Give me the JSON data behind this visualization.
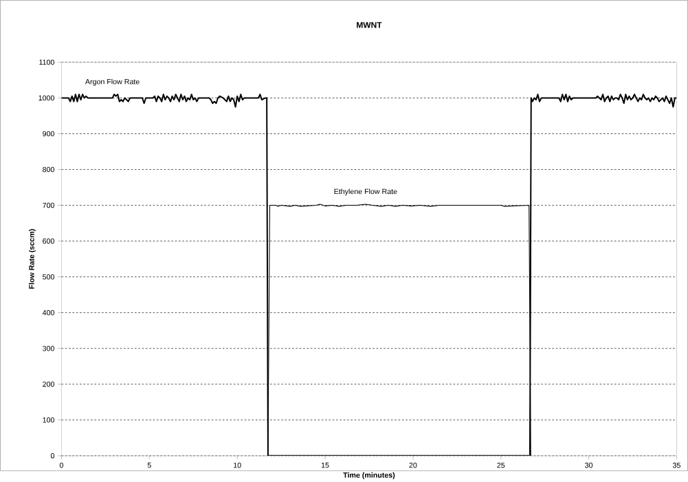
{
  "chart_data": {
    "type": "line",
    "title": "MWNT",
    "xlabel": "Time (minutes)",
    "ylabel": "Flow Rate (sccm)",
    "xlim": [
      0,
      35
    ],
    "ylim": [
      0,
      1100
    ],
    "xticks": [
      0,
      5,
      10,
      15,
      20,
      25,
      30,
      35
    ],
    "yticks": [
      0,
      100,
      200,
      300,
      400,
      500,
      600,
      700,
      800,
      900,
      1000,
      1100
    ],
    "grid": "y",
    "marker": "none",
    "line_style": "solid",
    "series": [
      {
        "name": "Argon Flow Rate",
        "color": "#000000",
        "x": [
          0,
          0.4,
          0.5,
          0.6,
          0.7,
          0.8,
          0.9,
          1.0,
          1.1,
          1.2,
          1.3,
          1.4,
          1.5,
          1.6,
          1.7,
          2.9,
          3.0,
          3.1,
          3.2,
          3.3,
          3.4,
          3.5,
          3.6,
          3.7,
          3.8,
          3.9,
          4.0,
          4.6,
          4.7,
          4.8,
          5.2,
          5.3,
          5.4,
          5.5,
          5.6,
          5.7,
          5.8,
          5.9,
          6.0,
          6.1,
          6.2,
          6.3,
          6.4,
          6.5,
          6.6,
          6.7,
          6.8,
          6.9,
          7.0,
          7.1,
          7.2,
          7.3,
          7.4,
          7.5,
          7.6,
          7.7,
          7.8,
          8.4,
          8.5,
          8.6,
          8.7,
          8.8,
          8.9,
          9.0,
          9.2,
          9.3,
          9.4,
          9.5,
          9.6,
          9.7,
          9.8,
          9.9,
          10.0,
          10.1,
          10.2,
          10.3,
          10.4,
          11.2,
          11.3,
          11.4,
          11.6,
          11.68,
          11.75,
          26.65,
          26.72,
          26.8,
          26.9,
          27.0,
          27.1,
          27.2,
          27.3,
          27.4,
          28.3,
          28.4,
          28.5,
          28.6,
          28.7,
          28.8,
          28.9,
          29.0,
          29.1,
          30.3,
          30.4,
          30.5,
          30.6,
          30.7,
          30.8,
          30.9,
          31.0,
          31.1,
          31.2,
          31.3,
          31.4,
          31.5,
          31.6,
          31.7,
          31.8,
          31.9,
          32.0,
          32.1,
          32.2,
          32.3,
          32.4,
          32.5,
          32.6,
          32.7,
          32.8,
          32.9,
          33.0,
          33.1,
          33.2,
          33.3,
          33.4,
          33.5,
          33.6,
          33.7,
          33.8,
          33.9,
          34.0,
          34.1,
          34.2,
          34.3,
          34.4,
          34.5,
          34.6,
          34.7,
          34.8,
          34.9,
          35.0
        ],
        "values": [
          1000,
          1000,
          990,
          1005,
          990,
          1010,
          990,
          1010,
          995,
          1010,
          1000,
          1005,
          1000,
          1000,
          1000,
          1000,
          1010,
          1005,
          1010,
          990,
          995,
          990,
          1000,
          995,
          990,
          1000,
          1000,
          1000,
          985,
          1000,
          1000,
          1005,
          990,
          1005,
          1000,
          990,
          1010,
          995,
          1005,
          1000,
          990,
          1005,
          995,
          1010,
          1000,
          990,
          1010,
          995,
          1005,
          990,
          1000,
          995,
          1010,
          995,
          1000,
          990,
          1000,
          1000,
          995,
          985,
          990,
          985,
          1000,
          1005,
          1000,
          995,
          990,
          1005,
          990,
          1000,
          995,
          975,
          1005,
          990,
          1010,
          995,
          1000,
          1000,
          1010,
          995,
          1000,
          1000,
          0,
          0,
          1000,
          990,
          1000,
          995,
          1010,
          990,
          1000,
          1000,
          1000,
          990,
          1010,
          995,
          1010,
          990,
          1005,
          995,
          1000,
          1000,
          1000,
          1005,
          1000,
          995,
          1010,
          990,
          1000,
          1005,
          990,
          1005,
          995,
          1000,
          1000,
          995,
          1010,
          1000,
          985,
          1010,
          995,
          1005,
          995,
          1000,
          1010,
          1000,
          990,
          1000,
          995,
          1010,
          1000,
          995,
          1000,
          990,
          1000,
          995,
          1005,
          1000,
          990,
          995,
          1000,
          990,
          1005,
          995,
          985,
          1000,
          975,
          1000,
          1000
        ]
      },
      {
        "name": "Ethylene Flow Rate",
        "color": "#000000",
        "x": [
          11.75,
          11.85,
          12.2,
          12.3,
          12.5,
          13.0,
          13.3,
          13.6,
          14.5,
          14.7,
          15.0,
          15.4,
          15.8,
          16.2,
          16.8,
          17.3,
          17.7,
          18.2,
          18.6,
          19.0,
          19.4,
          19.9,
          20.4,
          21.0,
          21.5,
          22.0,
          25.0,
          25.2,
          26.6,
          26.7
        ],
        "values": [
          0,
          700,
          700,
          697,
          700,
          697,
          700,
          697,
          700,
          703,
          698,
          700,
          697,
          700,
          700,
          703,
          700,
          697,
          700,
          697,
          700,
          698,
          700,
          697,
          700,
          700,
          700,
          697,
          700,
          0
        ]
      }
    ]
  }
}
